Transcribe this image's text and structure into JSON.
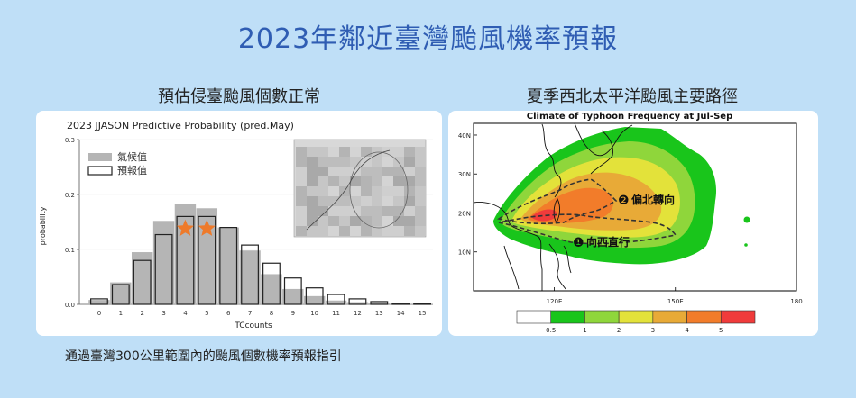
{
  "page": {
    "title": "2023年鄰近臺灣颱風機率預報",
    "left_heading": "預估侵臺颱風個數正常",
    "right_heading": "夏季西北太平洋颱風主要路徑",
    "caption": "通過臺灣300公里範圍內的颱風個數機率預報指引"
  },
  "chart_data": [
    {
      "type": "bar",
      "title": "2023 JJASON Predictive Probability (pred.May)",
      "xlabel": "TCcounts",
      "ylabel": "probability",
      "ylim": [
        0,
        0.3
      ],
      "yticks": [
        "0.0",
        "0.1",
        "0.2",
        "0.3"
      ],
      "categories": [
        "0",
        "1",
        "2",
        "3",
        "4",
        "5",
        "6",
        "7",
        "8",
        "9",
        "10",
        "11",
        "12",
        "13",
        "14",
        "15"
      ],
      "series": [
        {
          "name": "氣候值",
          "style": "filled",
          "color": "#b5b5b5",
          "values": [
            0.008,
            0.04,
            0.095,
            0.152,
            0.182,
            0.175,
            0.14,
            0.098,
            0.055,
            0.028,
            0.015,
            0.007,
            0.004,
            0.002,
            0.001,
            0.001
          ]
        },
        {
          "name": "預報值",
          "style": "outline",
          "color": "#222222",
          "values": [
            0.01,
            0.036,
            0.08,
            0.127,
            0.16,
            0.16,
            0.14,
            0.108,
            0.075,
            0.048,
            0.03,
            0.018,
            0.01,
            0.005,
            0.002,
            0.001
          ]
        }
      ],
      "highlighted_categories": [
        "4",
        "5"
      ],
      "highlight_marker": "star",
      "highlight_color": "#ee7a2a",
      "inset": {
        "label": "Taiwan TC influence domain (300 km circle)"
      }
    },
    {
      "type": "heatmap",
      "title": "Climate of Typhoon Frequency at Jul-Sep",
      "x_ticks": [
        "120E",
        "150E",
        "180"
      ],
      "y_ticks": [
        "40N",
        "30N",
        "20N",
        "10N"
      ],
      "xlim": [
        100,
        180
      ],
      "ylim": [
        0,
        43
      ],
      "colorbar": {
        "ticks": [
          "0.5",
          "1",
          "2",
          "3",
          "4",
          "5"
        ],
        "colors": [
          "#ffffff",
          "#19c51b",
          "#8fd63b",
          "#e3e23a",
          "#e8aa37",
          "#f27c2a",
          "#f03b3b"
        ]
      },
      "tracks": [
        {
          "label": "偏北轉向",
          "marker": "❷"
        },
        {
          "label": "向西直行",
          "marker": "❶"
        }
      ]
    }
  ]
}
